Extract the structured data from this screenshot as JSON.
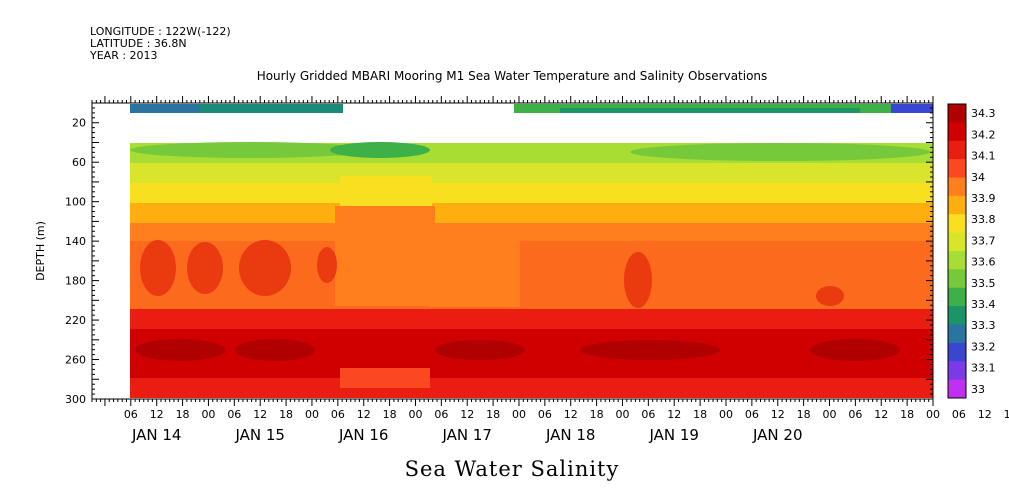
{
  "header": {
    "longitude": "LONGITUDE : 122W(-122)",
    "latitude": "LATITUDE : 36.8N",
    "year": "YEAR : 2013",
    "title": "Hourly Gridded MBARI Mooring M1 Sea Water Temperature and Salinity Observations"
  },
  "chart_data": {
    "type": "heatmap",
    "title": "Hourly Gridded MBARI Mooring M1 Sea Water Temperature and Salinity Observations",
    "xlabel": "Sea Water Salinity",
    "ylabel": "DEPTH (m)",
    "y_reversed": true,
    "ylim": [
      0,
      300
    ],
    "y_ticks": [
      20,
      60,
      100,
      140,
      180,
      220,
      260,
      300
    ],
    "x_range_hours_from_jan13_21h": [
      0,
      195
    ],
    "x_hour_ticks": [
      "06",
      "12",
      "18",
      "00",
      "06",
      "12",
      "18",
      "00",
      "06",
      "12",
      "18",
      "00",
      "06",
      "12",
      "18",
      "00",
      "06",
      "12",
      "18",
      "00",
      "06",
      "12",
      "18",
      "00",
      "06",
      "12",
      "18",
      "00",
      "06",
      "12",
      "18",
      "00",
      "06",
      "12",
      "18",
      "00",
      "06",
      "12",
      "18",
      "00"
    ],
    "x_day_labels": [
      "JAN 14",
      "JAN 15",
      "JAN 16",
      "JAN 17",
      "JAN 18",
      "JAN 19",
      "JAN 20"
    ],
    "colorbar": {
      "levels": [
        "34.3",
        "34.2",
        "34.1",
        "34",
        "33.9",
        "33.8",
        "33.7",
        "33.6",
        "33.5",
        "33.4",
        "33.3",
        "33.2",
        "33.1",
        "33"
      ],
      "colors": [
        "#b00000",
        "#d00000",
        "#ea1e10",
        "#fc4820",
        "#ff7f1e",
        "#ffae10",
        "#f8e020",
        "#d8e52c",
        "#a8dd33",
        "#76c93a",
        "#3eb048",
        "#1c9468",
        "#2a74a0",
        "#3a46d0",
        "#7a3ae8",
        "#c030f0"
      ]
    },
    "depth_bands": [
      {
        "top": 10,
        "bottom": 14,
        "label": "surface sensor: 33.2-33.5, gap JAN 16 05h - JAN 17 14h"
      },
      {
        "top": 40,
        "bottom": 60,
        "value": 33.6
      },
      {
        "top": 60,
        "bottom": 80,
        "value": 33.7
      },
      {
        "top": 80,
        "bottom": 100,
        "value": 33.8
      },
      {
        "top": 100,
        "bottom": 120,
        "value": 33.9
      },
      {
        "top": 120,
        "bottom": 140,
        "value": 34.0
      },
      {
        "top": 140,
        "bottom": 210,
        "value": 34.05
      },
      {
        "top": 210,
        "bottom": 230,
        "value": 34.1
      },
      {
        "top": 230,
        "bottom": 280,
        "value": 34.25
      },
      {
        "top": 280,
        "bottom": 300,
        "value": 34.15
      }
    ]
  }
}
